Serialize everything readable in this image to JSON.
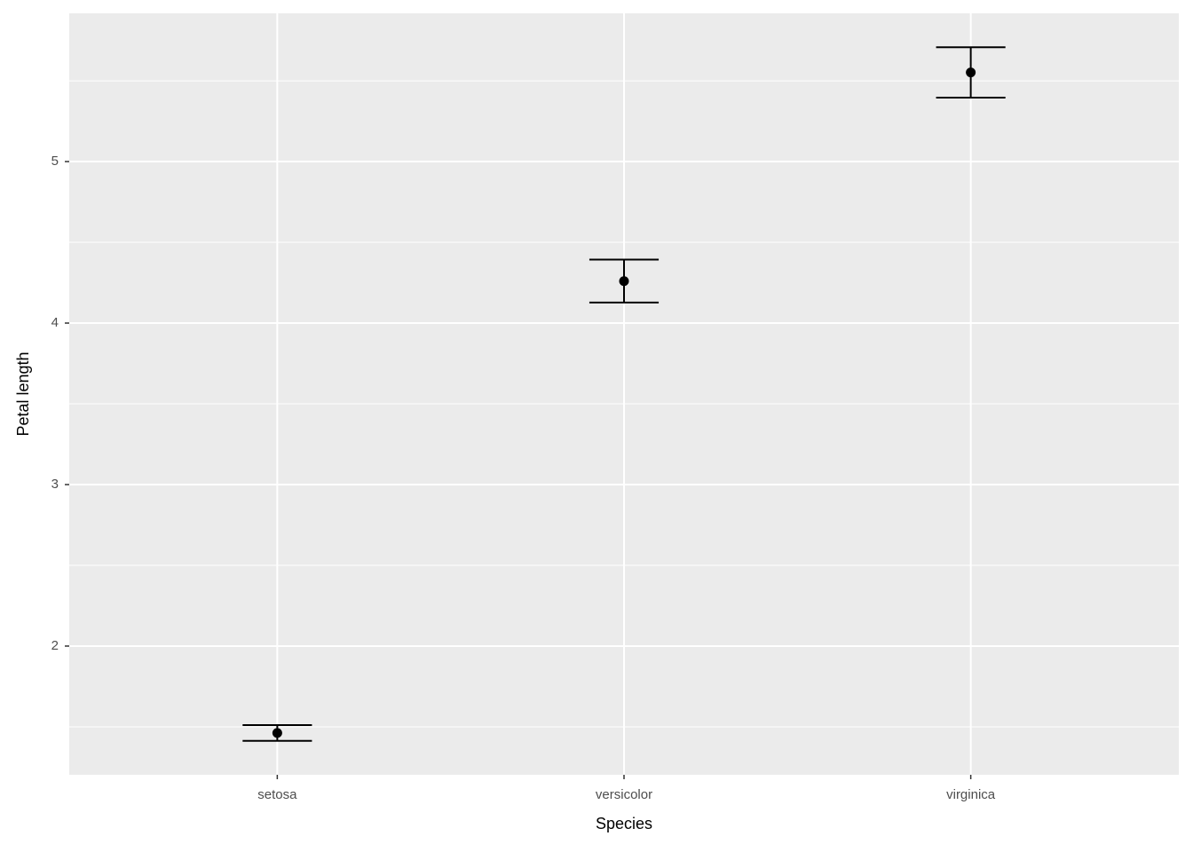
{
  "chart_data": {
    "type": "errorbar",
    "x_label": "Species",
    "y_label": "Petal length",
    "categories": [
      "setosa",
      "versicolor",
      "virginica"
    ],
    "values": [
      1.462,
      4.26,
      5.552
    ],
    "errors": [
      0.049,
      0.133,
      0.156
    ],
    "color": "#000000",
    "ylim": [
      1.203,
      5.918
    ],
    "yticks": [
      2,
      3,
      4,
      5
    ],
    "minor_yticks": [
      1.5,
      2.5,
      3.5,
      4.5,
      5.5
    ],
    "grid": true
  }
}
